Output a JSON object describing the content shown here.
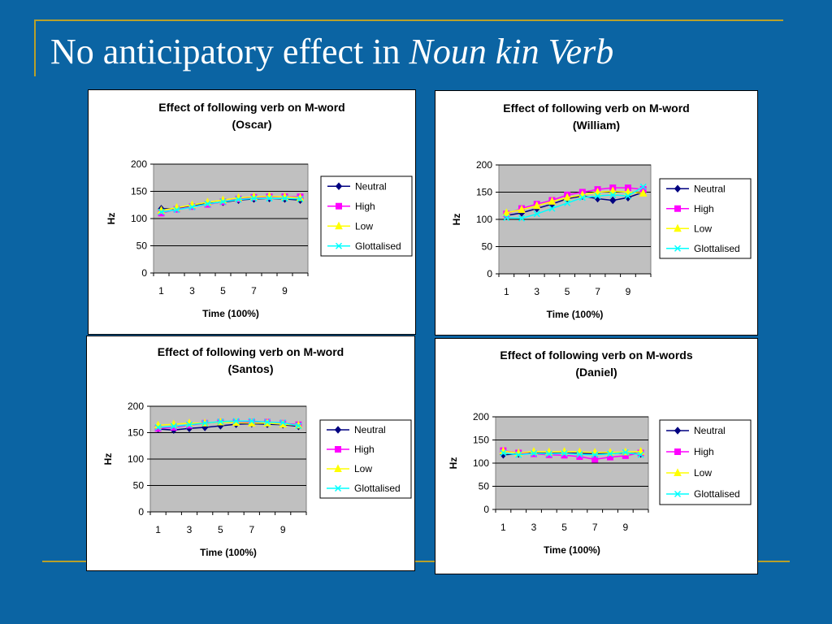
{
  "slide": {
    "title_prefix": "No anticipatory effect in ",
    "title_italic": "Noun kin Verb",
    "background": "#0b64a3",
    "accent": "#b8a02a"
  },
  "series_style": [
    {
      "name": "Neutral",
      "color": "#000080",
      "marker": "diamond"
    },
    {
      "name": "High",
      "color": "#ff00ff",
      "marker": "square"
    },
    {
      "name": "Low",
      "color": "#ffff00",
      "marker": "triangle"
    },
    {
      "name": "Glottalised",
      "color": "#00ffff",
      "marker": "x"
    }
  ],
  "chart_data": [
    {
      "type": "line",
      "title": "Effect of following verb on M-word",
      "subtitle": "(Oscar)",
      "xlabel": "Time (100%)",
      "ylabel": "Hz",
      "x": [
        1,
        2,
        3,
        4,
        5,
        6,
        7,
        8,
        9,
        10
      ],
      "x_ticks": [
        "1",
        "3",
        "5",
        "7",
        "9"
      ],
      "ylim": [
        0,
        200
      ],
      "y_ticks": [
        "0",
        "50",
        "100",
        "150",
        "200"
      ],
      "plot_background": "#c0c0c0",
      "grid": true,
      "legend": "right",
      "series": [
        {
          "name": "Neutral",
          "values": [
            118,
            118,
            123,
            128,
            130,
            134,
            136,
            137,
            136,
            134
          ]
        },
        {
          "name": "High",
          "values": [
            110,
            117,
            122,
            126,
            131,
            136,
            139,
            140,
            140,
            140
          ]
        },
        {
          "name": "Low",
          "values": [
            115,
            120,
            125,
            130,
            134,
            138,
            140,
            141,
            140,
            138
          ]
        },
        {
          "name": "Glottalised",
          "values": [
            112,
            116,
            121,
            127,
            131,
            135,
            137,
            137,
            137,
            136
          ]
        }
      ]
    },
    {
      "type": "line",
      "title": "Effect of following verb on M-word",
      "subtitle": "(William)",
      "xlabel": "Time (100%)",
      "ylabel": "Hz",
      "x": [
        1,
        2,
        3,
        4,
        5,
        6,
        7,
        8,
        9,
        10
      ],
      "x_ticks": [
        "1",
        "3",
        "5",
        "7",
        "9"
      ],
      "ylim": [
        0,
        200
      ],
      "y_ticks": [
        "0",
        "50",
        "100",
        "150",
        "200"
      ],
      "plot_background": "#c0c0c0",
      "grid": true,
      "legend": "right",
      "series": [
        {
          "name": "Neutral",
          "values": [
            107,
            112,
            120,
            128,
            138,
            143,
            138,
            135,
            140,
            150
          ]
        },
        {
          "name": "High",
          "values": [
            110,
            120,
            128,
            135,
            145,
            150,
            155,
            158,
            158,
            155
          ]
        },
        {
          "name": "Low",
          "values": [
            112,
            118,
            125,
            133,
            140,
            145,
            150,
            152,
            150,
            148
          ]
        },
        {
          "name": "Glottalised",
          "values": [
            103,
            102,
            110,
            120,
            130,
            140,
            143,
            145,
            143,
            160
          ]
        }
      ]
    },
    {
      "type": "line",
      "title": "Effect of following verb on M-word",
      "subtitle": "(Santos)",
      "xlabel": "Time (100%)",
      "ylabel": "Hz",
      "x": [
        1,
        2,
        3,
        4,
        5,
        6,
        7,
        8,
        9,
        10
      ],
      "x_ticks": [
        "1",
        "3",
        "5",
        "7",
        "9"
      ],
      "ylim": [
        0,
        200
      ],
      "y_ticks": [
        "0",
        "50",
        "100",
        "150",
        "200"
      ],
      "plot_background": "#c0c0c0",
      "grid": true,
      "legend": "right",
      "series": [
        {
          "name": "Neutral",
          "values": [
            157,
            155,
            158,
            160,
            163,
            166,
            167,
            166,
            165,
            162
          ]
        },
        {
          "name": "High",
          "values": [
            158,
            160,
            164,
            168,
            170,
            170,
            170,
            170,
            168,
            165
          ]
        },
        {
          "name": "Low",
          "values": [
            164,
            166,
            168,
            168,
            170,
            169,
            168,
            168,
            166,
            164
          ]
        },
        {
          "name": "Glottalised",
          "values": [
            160,
            162,
            165,
            168,
            171,
            172,
            172,
            170,
            169,
            163
          ]
        }
      ]
    },
    {
      "type": "line",
      "title": "Effect of following verb on M-words",
      "subtitle": "(Daniel)",
      "xlabel": "Time (100%)",
      "ylabel": "Hz",
      "x": [
        1,
        2,
        3,
        4,
        5,
        6,
        7,
        8,
        9,
        10
      ],
      "x_ticks": [
        "1",
        "3",
        "5",
        "7",
        "9"
      ],
      "ylim": [
        0,
        200
      ],
      "y_ticks": [
        "0",
        "50",
        "100",
        "150",
        "200"
      ],
      "plot_background": "#c0c0c0",
      "grid": true,
      "legend": "right",
      "series": [
        {
          "name": "Neutral",
          "values": [
            118,
            120,
            122,
            121,
            122,
            121,
            120,
            121,
            122,
            120
          ]
        },
        {
          "name": "High",
          "values": [
            127,
            122,
            120,
            118,
            117,
            114,
            108,
            113,
            116,
            122
          ]
        },
        {
          "name": "Low",
          "values": [
            126,
            122,
            125,
            124,
            125,
            124,
            123,
            123,
            124,
            125
          ]
        },
        {
          "name": "Glottalised",
          "values": [
            122,
            118,
            121,
            120,
            121,
            119,
            118,
            120,
            123,
            118
          ]
        }
      ]
    }
  ]
}
